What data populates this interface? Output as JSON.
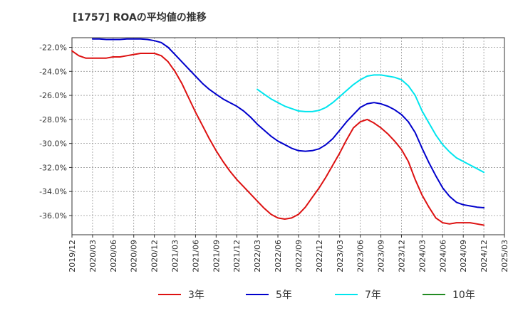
{
  "chart_data": {
    "type": "line",
    "title": "[1757]  ROAの平均値の推移",
    "xlabel": "",
    "ylabel": "",
    "ylim": [
      -37.6,
      -21.2
    ],
    "y_ticks": [
      -22.0,
      -24.0,
      -26.0,
      -28.0,
      -30.0,
      -32.0,
      -34.0,
      -36.0
    ],
    "y_tick_labels": [
      "-22.0%",
      "-24.0%",
      "-26.0%",
      "-28.0%",
      "-30.0%",
      "-32.0%",
      "-34.0%",
      "-36.0%"
    ],
    "x_range": [
      "2019/12",
      "2025/03"
    ],
    "x_tick_labels": [
      "2019/12",
      "2020/03",
      "2020/06",
      "2020/09",
      "2020/12",
      "2021/03",
      "2021/06",
      "2021/09",
      "2021/12",
      "2022/03",
      "2022/06",
      "2022/09",
      "2022/12",
      "2023/03",
      "2023/06",
      "2023/09",
      "2023/12",
      "2024/03",
      "2024/06",
      "2024/09",
      "2024/12",
      "2025/03"
    ],
    "grid": true,
    "legend_position": "bottom",
    "series": [
      {
        "name": "3年",
        "color": "#dd1111",
        "points": [
          [
            "2019/12",
            -22.3
          ],
          [
            "2020/01",
            -22.7
          ],
          [
            "2020/02",
            -22.9
          ],
          [
            "2020/03",
            -22.9
          ],
          [
            "2020/04",
            -22.9
          ],
          [
            "2020/05",
            -22.9
          ],
          [
            "2020/06",
            -22.8
          ],
          [
            "2020/07",
            -22.8
          ],
          [
            "2020/08",
            -22.7
          ],
          [
            "2020/09",
            -22.6
          ],
          [
            "2020/10",
            -22.5
          ],
          [
            "2020/11",
            -22.5
          ],
          [
            "2020/12",
            -22.5
          ],
          [
            "2021/01",
            -22.7
          ],
          [
            "2021/02",
            -23.2
          ],
          [
            "2021/03",
            -24.0
          ],
          [
            "2021/04",
            -25.0
          ],
          [
            "2021/05",
            -26.2
          ],
          [
            "2021/06",
            -27.4
          ],
          [
            "2021/07",
            -28.5
          ],
          [
            "2021/08",
            -29.6
          ],
          [
            "2021/09",
            -30.6
          ],
          [
            "2021/10",
            -31.5
          ],
          [
            "2021/11",
            -32.3
          ],
          [
            "2021/12",
            -33.0
          ],
          [
            "2022/01",
            -33.6
          ],
          [
            "2022/02",
            -34.2
          ],
          [
            "2022/03",
            -34.8
          ],
          [
            "2022/04",
            -35.4
          ],
          [
            "2022/05",
            -35.9
          ],
          [
            "2022/06",
            -36.2
          ],
          [
            "2022/07",
            -36.3
          ],
          [
            "2022/08",
            -36.2
          ],
          [
            "2022/09",
            -35.9
          ],
          [
            "2022/10",
            -35.3
          ],
          [
            "2022/11",
            -34.5
          ],
          [
            "2022/12",
            -33.7
          ],
          [
            "2023/01",
            -32.8
          ],
          [
            "2023/02",
            -31.8
          ],
          [
            "2023/03",
            -30.8
          ],
          [
            "2023/04",
            -29.7
          ],
          [
            "2023/05",
            -28.7
          ],
          [
            "2023/06",
            -28.2
          ],
          [
            "2023/07",
            -28.0
          ],
          [
            "2023/08",
            -28.3
          ],
          [
            "2023/09",
            -28.7
          ],
          [
            "2023/10",
            -29.2
          ],
          [
            "2023/11",
            -29.8
          ],
          [
            "2023/12",
            -30.5
          ],
          [
            "2024/01",
            -31.5
          ],
          [
            "2024/02",
            -33.0
          ],
          [
            "2024/03",
            -34.3
          ],
          [
            "2024/04",
            -35.3
          ],
          [
            "2024/05",
            -36.2
          ],
          [
            "2024/06",
            -36.6
          ],
          [
            "2024/07",
            -36.7
          ],
          [
            "2024/08",
            -36.6
          ],
          [
            "2024/09",
            -36.6
          ],
          [
            "2024/10",
            -36.6
          ],
          [
            "2024/11",
            -36.7
          ],
          [
            "2024/12",
            -36.8
          ]
        ]
      },
      {
        "name": "5年",
        "color": "#0000cc",
        "points": [
          [
            "2020/03",
            -21.3
          ],
          [
            "2020/04",
            -21.3
          ],
          [
            "2020/05",
            -21.35
          ],
          [
            "2020/06",
            -21.35
          ],
          [
            "2020/07",
            -21.35
          ],
          [
            "2020/08",
            -21.3
          ],
          [
            "2020/09",
            -21.3
          ],
          [
            "2020/10",
            -21.3
          ],
          [
            "2020/11",
            -21.35
          ],
          [
            "2020/12",
            -21.45
          ],
          [
            "2021/01",
            -21.6
          ],
          [
            "2021/02",
            -22.0
          ],
          [
            "2021/03",
            -22.6
          ],
          [
            "2021/04",
            -23.2
          ],
          [
            "2021/05",
            -23.8
          ],
          [
            "2021/06",
            -24.4
          ],
          [
            "2021/07",
            -25.0
          ],
          [
            "2021/08",
            -25.5
          ],
          [
            "2021/09",
            -25.9
          ],
          [
            "2021/10",
            -26.3
          ],
          [
            "2021/11",
            -26.6
          ],
          [
            "2021/12",
            -26.9
          ],
          [
            "2022/01",
            -27.3
          ],
          [
            "2022/02",
            -27.8
          ],
          [
            "2022/03",
            -28.4
          ],
          [
            "2022/04",
            -28.9
          ],
          [
            "2022/05",
            -29.4
          ],
          [
            "2022/06",
            -29.8
          ],
          [
            "2022/07",
            -30.1
          ],
          [
            "2022/08",
            -30.4
          ],
          [
            "2022/09",
            -30.6
          ],
          [
            "2022/10",
            -30.65
          ],
          [
            "2022/11",
            -30.6
          ],
          [
            "2022/12",
            -30.45
          ],
          [
            "2023/01",
            -30.1
          ],
          [
            "2023/02",
            -29.6
          ],
          [
            "2023/03",
            -28.9
          ],
          [
            "2023/04",
            -28.2
          ],
          [
            "2023/05",
            -27.6
          ],
          [
            "2023/06",
            -27.0
          ],
          [
            "2023/07",
            -26.7
          ],
          [
            "2023/08",
            -26.6
          ],
          [
            "2023/09",
            -26.7
          ],
          [
            "2023/10",
            -26.9
          ],
          [
            "2023/11",
            -27.2
          ],
          [
            "2023/12",
            -27.6
          ],
          [
            "2024/01",
            -28.2
          ],
          [
            "2024/02",
            -29.1
          ],
          [
            "2024/03",
            -30.4
          ],
          [
            "2024/04",
            -31.6
          ],
          [
            "2024/05",
            -32.7
          ],
          [
            "2024/06",
            -33.7
          ],
          [
            "2024/07",
            -34.4
          ],
          [
            "2024/08",
            -34.9
          ],
          [
            "2024/09",
            -35.1
          ],
          [
            "2024/10",
            -35.2
          ],
          [
            "2024/11",
            -35.3
          ],
          [
            "2024/12",
            -35.35
          ]
        ]
      },
      {
        "name": "7年",
        "color": "#00e5ee",
        "points": [
          [
            "2022/03",
            -25.5
          ],
          [
            "2022/04",
            -25.9
          ],
          [
            "2022/05",
            -26.3
          ],
          [
            "2022/06",
            -26.6
          ],
          [
            "2022/07",
            -26.9
          ],
          [
            "2022/08",
            -27.1
          ],
          [
            "2022/09",
            -27.3
          ],
          [
            "2022/10",
            -27.35
          ],
          [
            "2022/11",
            -27.35
          ],
          [
            "2022/12",
            -27.25
          ],
          [
            "2023/01",
            -27.0
          ],
          [
            "2023/02",
            -26.6
          ],
          [
            "2023/03",
            -26.1
          ],
          [
            "2023/04",
            -25.6
          ],
          [
            "2023/05",
            -25.1
          ],
          [
            "2023/06",
            -24.7
          ],
          [
            "2023/07",
            -24.4
          ],
          [
            "2023/08",
            -24.3
          ],
          [
            "2023/09",
            -24.3
          ],
          [
            "2023/10",
            -24.4
          ],
          [
            "2023/11",
            -24.5
          ],
          [
            "2023/12",
            -24.7
          ],
          [
            "2024/01",
            -25.2
          ],
          [
            "2024/02",
            -26.0
          ],
          [
            "2024/03",
            -27.3
          ],
          [
            "2024/04",
            -28.3
          ],
          [
            "2024/05",
            -29.3
          ],
          [
            "2024/06",
            -30.1
          ],
          [
            "2024/07",
            -30.7
          ],
          [
            "2024/08",
            -31.2
          ],
          [
            "2024/09",
            -31.5
          ],
          [
            "2024/10",
            -31.8
          ],
          [
            "2024/11",
            -32.1
          ],
          [
            "2024/12",
            -32.4
          ]
        ]
      },
      {
        "name": "10年",
        "color": "#228b22",
        "points": []
      }
    ]
  }
}
